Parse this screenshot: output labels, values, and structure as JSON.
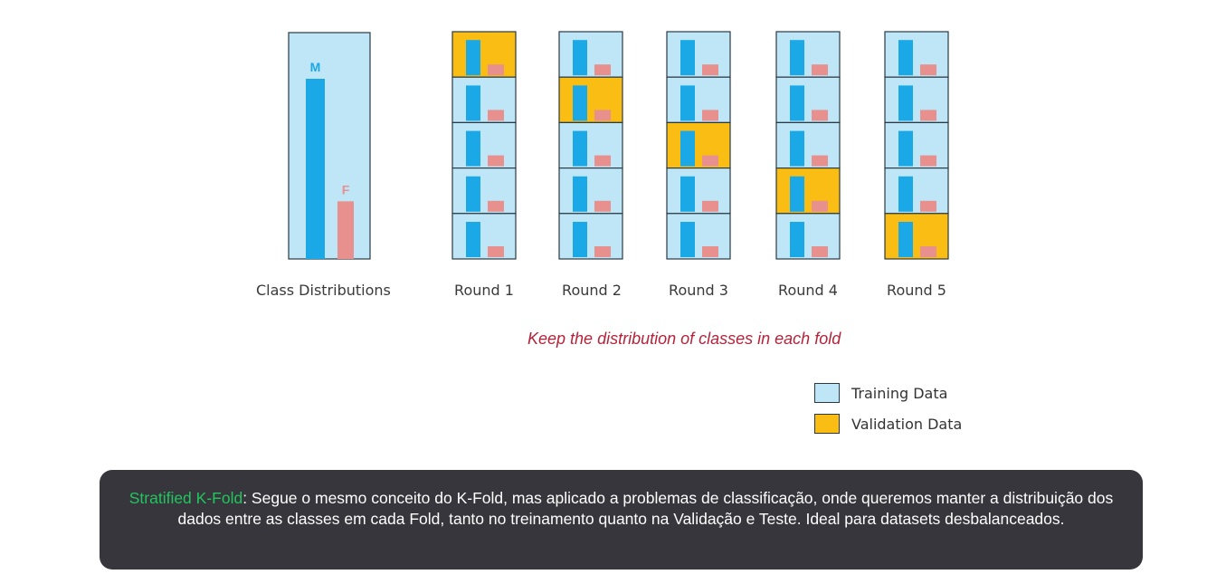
{
  "diagram": {
    "colors": {
      "training": "#bfe6f7",
      "validation": "#f9bd13",
      "class_m": "#1aa8e6",
      "class_f": "#e8908e",
      "border": "#2a3a44",
      "caption_text": "#3a3a3a",
      "note_text": "#b5233a"
    },
    "class_distribution": {
      "caption": "Class Distributions",
      "classes": [
        {
          "label": "M",
          "relative_size": 1.0
        },
        {
          "label": "F",
          "relative_size": 0.32
        }
      ]
    },
    "fold_count": 5,
    "rounds": [
      {
        "label": "Round 1",
        "validation_fold": 1
      },
      {
        "label": "Round 2",
        "validation_fold": 2
      },
      {
        "label": "Round 3",
        "validation_fold": 3
      },
      {
        "label": "Round 4",
        "validation_fold": 4
      },
      {
        "label": "Round 5",
        "validation_fold": 5
      }
    ],
    "note": "Keep the distribution of classes in each fold",
    "legend": [
      {
        "label": "Training Data",
        "color": "#bfe6f7"
      },
      {
        "label": "Validation Data",
        "color": "#f9bd13"
      }
    ]
  },
  "subtitle": {
    "highlight": "Stratified K-Fold",
    "text": ": Segue o mesmo conceito do K-Fold, mas aplicado a problemas de classificação, onde queremos manter a distribuição dos dados entre as classes em cada Fold, tanto no treinamento quanto na Validação e Teste. Ideal para datasets desbalanceados.",
    "highlight_color": "#22c55e"
  }
}
